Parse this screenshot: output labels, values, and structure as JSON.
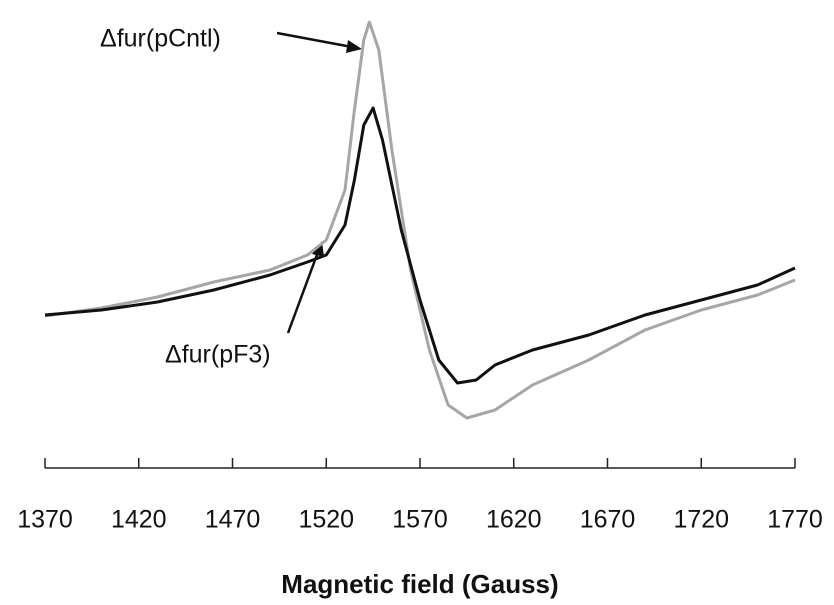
{
  "chart_data": {
    "type": "line",
    "xlabel": "Magnetic field (Gauss)",
    "xlim": [
      1370,
      1770
    ],
    "xticks": [
      1370,
      1420,
      1470,
      1520,
      1570,
      1620,
      1670,
      1720,
      1770
    ],
    "ylim": [
      0,
      440
    ],
    "annotations": [
      "Δfur(pCntl)",
      "Δfur(pF3)"
    ],
    "series": [
      {
        "name": "Δfur(pCntl)",
        "color": "#a6a6a6",
        "x": [
          1370,
          1400,
          1430,
          1460,
          1490,
          1510,
          1520,
          1530,
          1535,
          1540,
          1543,
          1548,
          1555,
          1565,
          1575,
          1585,
          1595,
          1610,
          1630,
          1660,
          1690,
          1720,
          1750,
          1770
        ],
        "values": [
          144,
          152,
          163,
          178,
          190,
          205,
          220,
          270,
          350,
          420,
          438,
          410,
          310,
          190,
          110,
          55,
          42,
          50,
          75,
          100,
          130,
          150,
          165,
          180
        ]
      },
      {
        "name": "Δfur(pF3)",
        "color": "#111111",
        "x": [
          1370,
          1400,
          1430,
          1460,
          1490,
          1510,
          1520,
          1530,
          1535,
          1540,
          1545,
          1550,
          1560,
          1570,
          1580,
          1590,
          1600,
          1610,
          1630,
          1660,
          1690,
          1720,
          1750,
          1770
        ],
        "values": [
          145,
          150,
          158,
          170,
          185,
          198,
          205,
          235,
          280,
          335,
          352,
          320,
          230,
          160,
          100,
          77,
          80,
          95,
          110,
          125,
          145,
          160,
          175,
          192
        ]
      }
    ]
  }
}
